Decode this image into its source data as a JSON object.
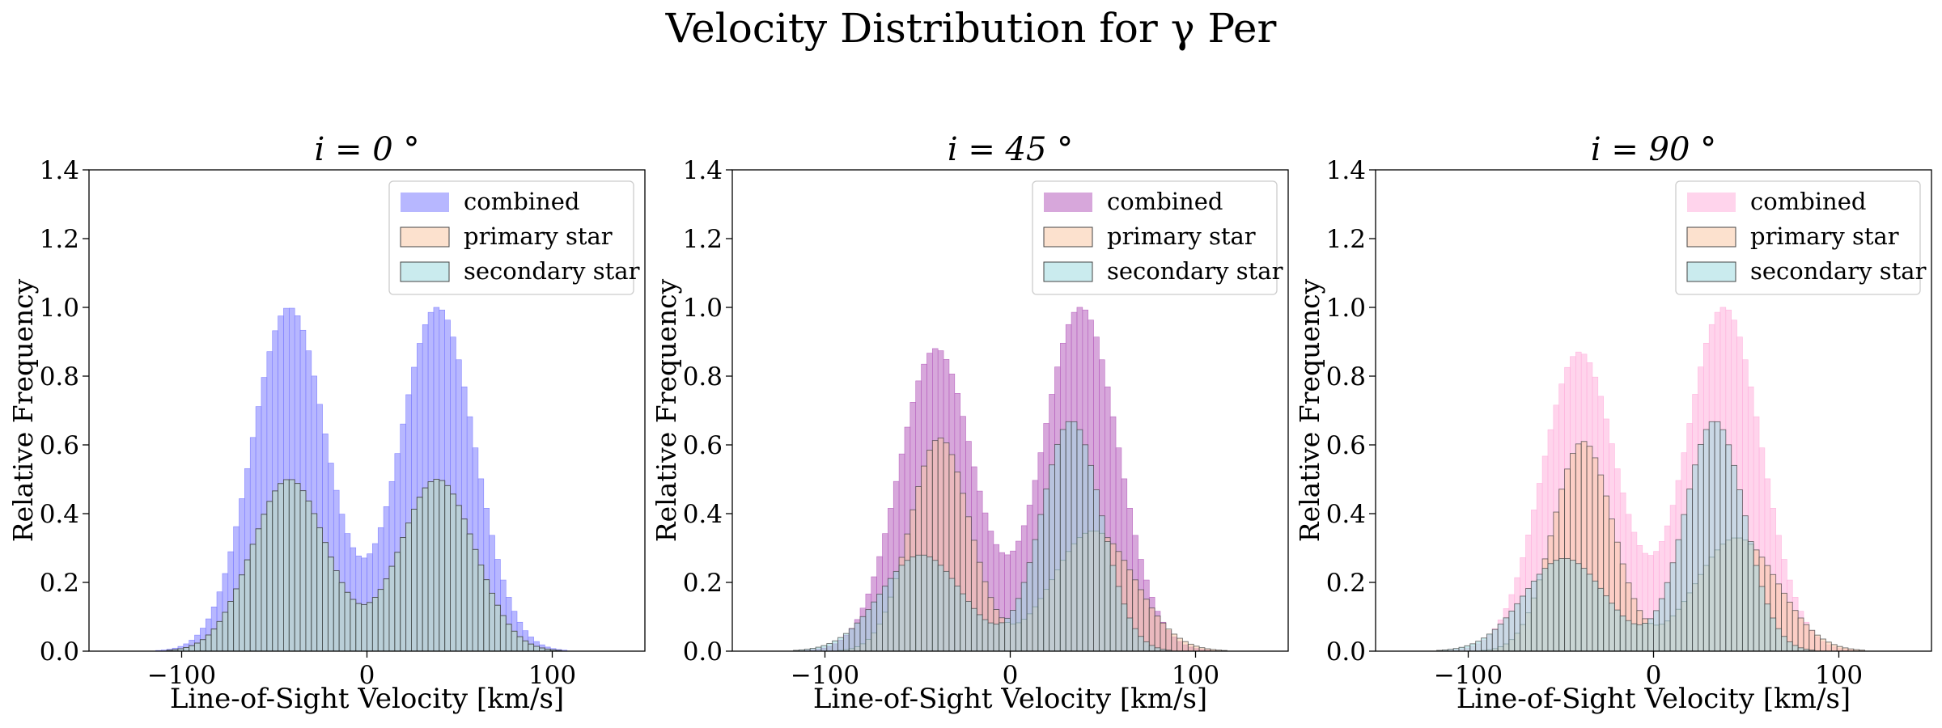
{
  "figure_title": "Velocity Distribution for γ Per",
  "chart_data": [
    {
      "type": "bar",
      "title": "i = 0 °",
      "xlabel": "Line-of-Sight Velocity [km/s]",
      "ylabel": "Relative Frequency",
      "xlim": [
        -150,
        150
      ],
      "ylim": [
        0,
        1.4
      ],
      "xticks": [
        -100,
        0,
        100
      ],
      "xtick_labels": [
        "−100",
        "0",
        "100"
      ],
      "yticks": [
        0.0,
        0.2,
        0.4,
        0.6,
        0.8,
        1.0,
        1.2,
        1.4
      ],
      "ytick_labels": [
        "0.0",
        "0.2",
        "0.4",
        "0.6",
        "0.8",
        "1.0",
        "1.2",
        "1.4"
      ],
      "legend_position": "upper-right",
      "bin_width": 3,
      "x_range": [
        -129,
        123
      ],
      "series": [
        {
          "name": "combined",
          "color": "#7b7bff",
          "components": [
            {
              "amp": 1.0,
              "center": -42,
              "sigma": 20
            },
            {
              "amp": 1.0,
              "center": 38,
              "sigma": 20
            }
          ]
        },
        {
          "name": "primary star",
          "color": "#f9c9a5",
          "components": [
            {
              "amp": 0.5,
              "center": -42,
              "sigma": 20
            },
            {
              "amp": 0.5,
              "center": 38,
              "sigma": 20
            }
          ]
        },
        {
          "name": "secondary star",
          "color": "#9fdbe0",
          "components": [
            {
              "amp": 0.5,
              "center": -42,
              "sigma": 20
            },
            {
              "amp": 0.5,
              "center": 38,
              "sigma": 20
            }
          ]
        }
      ]
    },
    {
      "type": "bar",
      "title": "i = 45 °",
      "xlabel": "Line-of-Sight Velocity [km/s]",
      "ylabel": "Relative Frequency",
      "xlim": [
        -150,
        150
      ],
      "ylim": [
        0,
        1.4
      ],
      "xticks": [
        -100,
        0,
        100
      ],
      "xtick_labels": [
        "−100",
        "0",
        "100"
      ],
      "yticks": [
        0.0,
        0.2,
        0.4,
        0.6,
        0.8,
        1.0,
        1.2,
        1.4
      ],
      "ytick_labels": [
        "0.0",
        "0.2",
        "0.4",
        "0.6",
        "0.8",
        "1.0",
        "1.2",
        "1.4"
      ],
      "legend_position": "upper-right",
      "bin_width": 3,
      "x_range": [
        -129,
        123
      ],
      "series": [
        {
          "name": "combined",
          "color": "#b65fbd",
          "components": [
            {
              "amp": 0.88,
              "center": -40,
              "sigma": 20
            },
            {
              "amp": 1.0,
              "center": 38,
              "sigma": 20
            }
          ]
        },
        {
          "name": "primary star",
          "color": "#f9c9a5",
          "components": [
            {
              "amp": 0.62,
              "center": -38,
              "sigma": 16
            },
            {
              "amp": 0.35,
              "center": 45,
              "sigma": 22
            }
          ]
        },
        {
          "name": "secondary star",
          "color": "#9fdbe0",
          "components": [
            {
              "amp": 0.28,
              "center": -48,
              "sigma": 22
            },
            {
              "amp": 0.67,
              "center": 33,
              "sigma": 16
            }
          ]
        }
      ]
    },
    {
      "type": "bar",
      "title": "i = 90 °",
      "xlabel": "Line-of-Sight Velocity [km/s]",
      "ylabel": "Relative Frequency",
      "xlim": [
        -150,
        150
      ],
      "ylim": [
        0,
        1.4
      ],
      "xticks": [
        -100,
        0,
        100
      ],
      "xtick_labels": [
        "−100",
        "0",
        "100"
      ],
      "yticks": [
        0.0,
        0.2,
        0.4,
        0.6,
        0.8,
        1.0,
        1.2,
        1.4
      ],
      "ytick_labels": [
        "0.0",
        "0.2",
        "0.4",
        "0.6",
        "0.8",
        "1.0",
        "1.2",
        "1.4"
      ],
      "legend_position": "upper-right",
      "bin_width": 3,
      "x_range": [
        -129,
        123
      ],
      "series": [
        {
          "name": "combined",
          "color": "#ffb0dd",
          "components": [
            {
              "amp": 0.87,
              "center": -40,
              "sigma": 20
            },
            {
              "amp": 1.0,
              "center": 38,
              "sigma": 20
            }
          ]
        },
        {
          "name": "primary star",
          "color": "#f9c9a5",
          "components": [
            {
              "amp": 0.61,
              "center": -38,
              "sigma": 16
            },
            {
              "amp": 0.33,
              "center": 45,
              "sigma": 22
            }
          ]
        },
        {
          "name": "secondary star",
          "color": "#9fdbe0",
          "components": [
            {
              "amp": 0.27,
              "center": -48,
              "sigma": 22
            },
            {
              "amp": 0.67,
              "center": 33,
              "sigma": 16
            }
          ]
        }
      ]
    }
  ]
}
